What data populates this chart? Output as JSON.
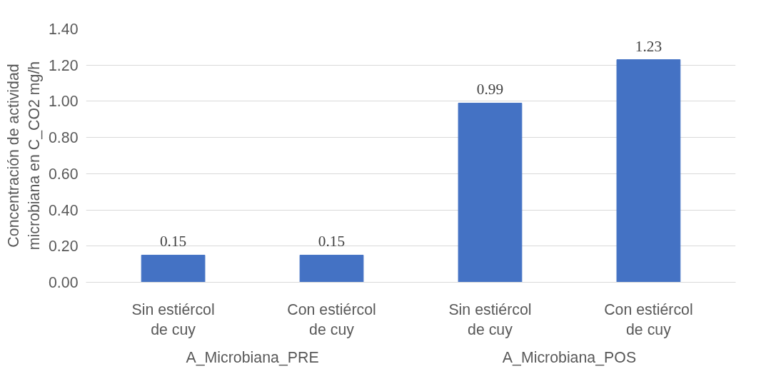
{
  "chart_data": {
    "type": "bar",
    "ylabel": "Concentración de actividad microbiana en C_CO2 mg/h",
    "categories": [
      "Sin estiércol de cuy",
      "Con estiércol de cuy",
      "Sin estiércol de cuy",
      "Con estiércol de cuy"
    ],
    "values": [
      0.15,
      0.15,
      0.99,
      1.23
    ],
    "color": "#4472c4",
    "ylim": [
      0,
      1.4
    ],
    "yticks": [
      {
        "value": 0,
        "label": "0.00"
      },
      {
        "value": 0.2,
        "label": "0.20"
      },
      {
        "value": 0.4,
        "label": "0.40"
      },
      {
        "value": 0.6,
        "label": "0.60"
      },
      {
        "value": 0.8,
        "label": "0.80"
      },
      {
        "value": 1.0,
        "label": "1.00"
      },
      {
        "value": 1.2,
        "label": "1.20"
      },
      {
        "value": 1.4,
        "label": "1.40"
      }
    ],
    "grid": "y",
    "data_labels": true,
    "annotations": [
      "A_Microbiana_PRE",
      "A_Microbiana_POS"
    ]
  }
}
